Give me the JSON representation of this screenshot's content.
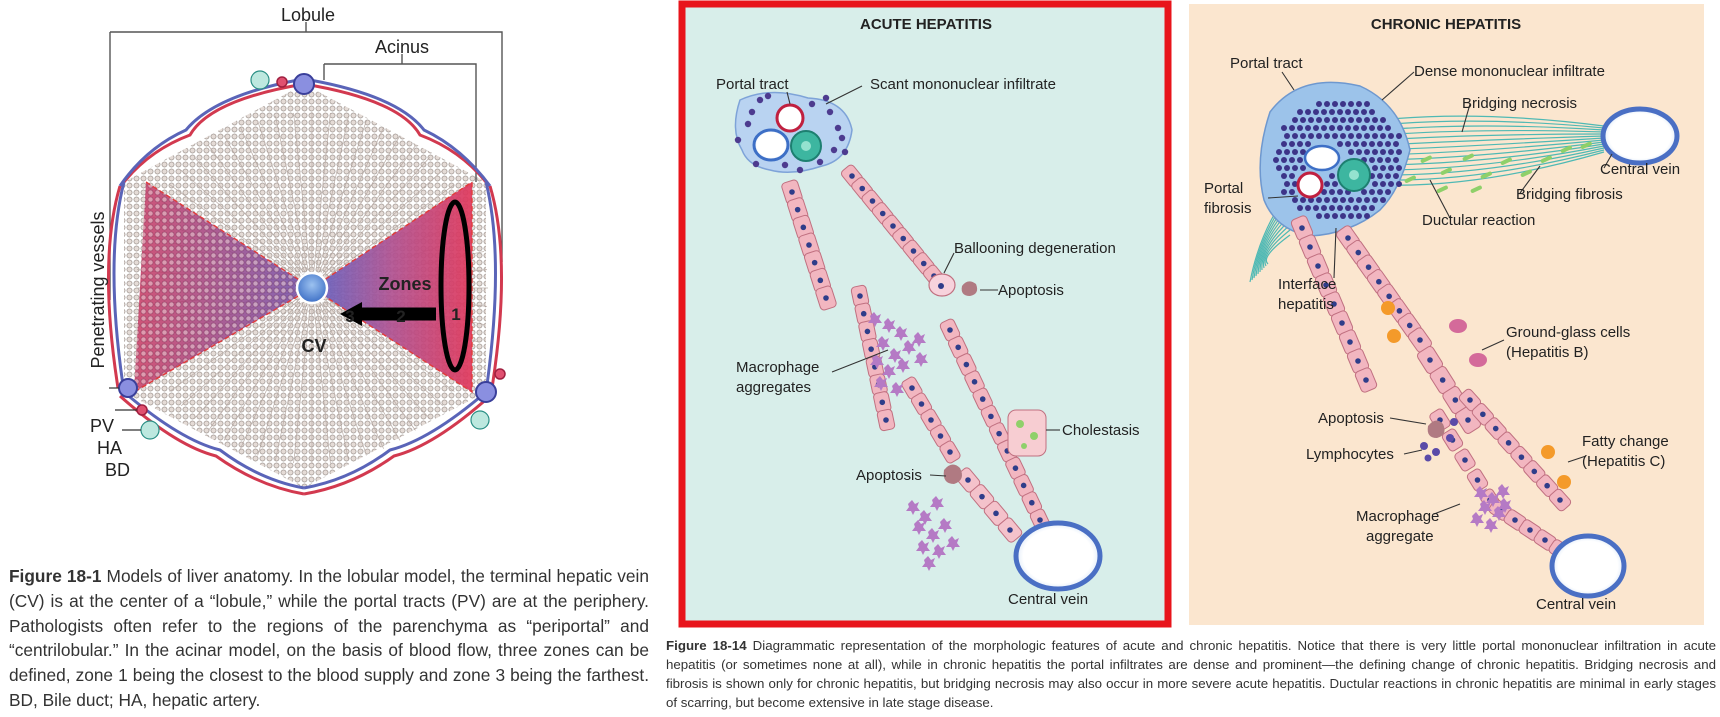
{
  "figure_1": {
    "labels": {
      "lobule": "Lobule",
      "acinus": "Acinus",
      "penetrating_vessels": "Penetrating vessels",
      "zones": "Zones",
      "zone_1": "1",
      "zone_2": "2",
      "zone_3": "3",
      "cv": "CV",
      "pv": "PV",
      "ha": "HA",
      "bd": "BD"
    },
    "caption_lead": "Figure 18-1",
    "caption_text": "Models of liver anatomy. In the lobular model, the terminal hepatic vein (CV) is at the center of a “lobule,” while the portal tracts (PV) are at the periphery. Pathologists often refer to the regions of the parenchyma as “periportal” and “centrilobular.” In the acinar model, on the basis of blood flow, three zones can be defined, zone 1 being the closest to the blood supply and zone 3 being the farthest. BD, Bile duct; HA, hepatic artery."
  },
  "figure_2": {
    "acute": {
      "title": "ACUTE HEPATITIS",
      "portal_tract": "Portal tract",
      "scant_infiltrate": "Scant mononuclear infiltrate",
      "ballooning": "Ballooning degeneration",
      "apoptosis_top": "Apoptosis",
      "macrophage_1": "Macrophage",
      "macrophage_2": "aggregates",
      "cholestasis": "Cholestasis",
      "apoptosis_bottom": "Apoptosis",
      "central_vein": "Central vein"
    },
    "chronic": {
      "title": "CHRONIC HEPATITIS",
      "portal_tract": "Portal tract",
      "dense_infiltrate": "Dense mononuclear infiltrate",
      "bridging_necrosis": "Bridging necrosis",
      "central_vein_top": "Central vein",
      "portal_fibrosis_1": "Portal",
      "portal_fibrosis_2": "fibrosis",
      "bridging_fibrosis": "Bridging fibrosis",
      "ductular_reaction": "Ductular reaction",
      "interface_1": "Interface",
      "interface_2": "hepatitis",
      "ground_glass_1": "Ground-glass cells",
      "ground_glass_2": "(Hepatitis B)",
      "apoptosis": "Apoptosis",
      "lymphocytes": "Lymphocytes",
      "fatty_1": "Fatty change",
      "fatty_2": "(Hepatitis C)",
      "macrophage_1": "Macrophage",
      "macrophage_2": "aggregate",
      "central_vein_bottom": "Central vein"
    },
    "caption_lead": "Figure 18-14",
    "caption_text": "Diagrammatic representation of the morphologic features of acute and chronic hepatitis. Notice that there is very little portal mononuclear infiltration in acute hepatitis (or sometimes none at all), while in chronic hepatitis the portal infiltrates are dense and prominent—the defining change of chronic hepatitis. Bridging necrosis and fibrosis is shown only for chronic hepatitis, but bridging necrosis may also occur in more severe acute hepatitis. Ductular reactions in chronic hepatitis are minimal in early stages of scarring, but become extensive in late stage disease."
  },
  "colors": {
    "acute_bg": "#d8eeea",
    "acute_border": "#e8141b",
    "chronic_bg": "#fbe6cf",
    "hepatocyte": "#f2b6c0",
    "nucleus": "#2f3d8a",
    "vein": "#4a6fc4",
    "artery": "#d2394f",
    "fibrosis": "#4fb9b4"
  }
}
